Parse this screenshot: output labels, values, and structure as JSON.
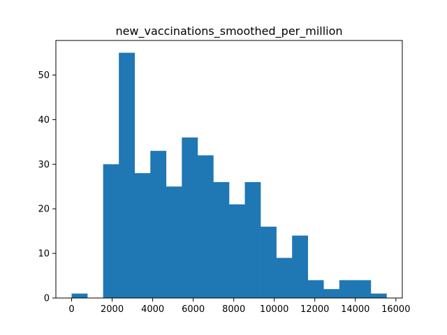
{
  "chart_data": {
    "type": "bar",
    "title": "new_vaccinations_smoothed_per_million",
    "xlabel": "",
    "ylabel": "",
    "bin_edges": [
      0,
      777,
      1554,
      2331,
      3108,
      3885,
      4662,
      5439,
      6216,
      6993,
      7770,
      8547,
      9324,
      10101,
      10878,
      11655,
      12432,
      13209,
      13986,
      14763,
      15540
    ],
    "values": [
      1,
      0,
      30,
      55,
      28,
      33,
      25,
      36,
      32,
      26,
      21,
      26,
      16,
      9,
      14,
      4,
      2,
      4,
      4,
      1
    ],
    "xlim": [
      -777,
      16317
    ],
    "ylim": [
      0,
      57.75
    ],
    "x_ticks": [
      0,
      2000,
      4000,
      6000,
      8000,
      10000,
      12000,
      14000,
      16000
    ],
    "x_tick_labels": [
      "0",
      "2000",
      "4000",
      "6000",
      "8000",
      "10000",
      "12000",
      "14000",
      "16000"
    ],
    "y_ticks": [
      0,
      10,
      20,
      30,
      40,
      50
    ],
    "y_tick_labels": [
      "0",
      "10",
      "20",
      "30",
      "40",
      "50"
    ],
    "bar_color": "#1f77b4",
    "grid": false,
    "legend": "none"
  }
}
